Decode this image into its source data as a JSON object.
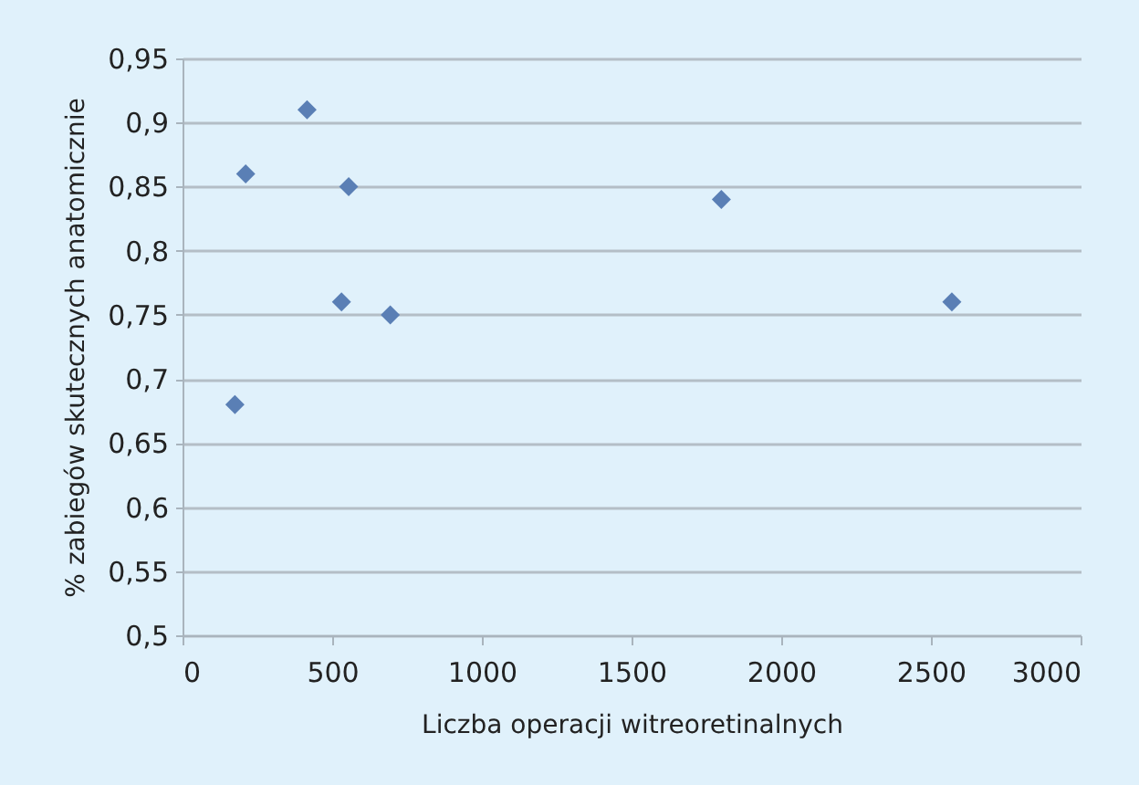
{
  "chart_data": {
    "type": "scatter",
    "xlabel": "Liczba operacji witreoretinalnych",
    "ylabel": "% zabiegów skutecznych anatomicznie",
    "x": [
      175,
      211,
      416,
      555,
      531,
      694,
      1800,
      2570
    ],
    "series": [
      {
        "color": "#5a7fb5",
        "values": [
          0.68,
          0.86,
          0.91,
          0.85,
          0.76,
          0.75,
          0.84,
          0.76
        ]
      }
    ],
    "xlim": [
      0,
      3000
    ],
    "xticks": [
      0,
      500,
      1000,
      1500,
      2000,
      2500,
      3000
    ],
    "ylim": [
      0.5,
      0.95
    ],
    "yticks": [
      {
        "value": 0.5,
        "label": "0,5"
      },
      {
        "value": 0.55,
        "label": "0,55"
      },
      {
        "value": 0.6,
        "label": "0,6"
      },
      {
        "value": 0.65,
        "label": "0,65"
      },
      {
        "value": 0.7,
        "label": "0,7"
      },
      {
        "value": 0.75,
        "label": "0,75"
      },
      {
        "value": 0.8,
        "label": "0,8"
      },
      {
        "value": 0.85,
        "label": "0,85"
      },
      {
        "value": 0.9,
        "label": "0,9"
      },
      {
        "value": 0.95,
        "label": "0,95"
      }
    ],
    "grid": "y",
    "marker": "diamond"
  }
}
